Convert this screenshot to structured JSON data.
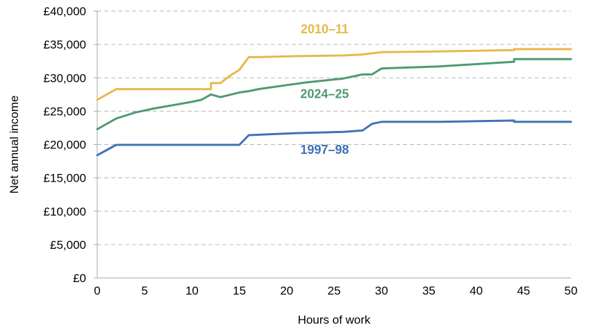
{
  "chart_data": {
    "type": "line",
    "title": "",
    "xlabel": "Hours of work",
    "ylabel": "Net annual income",
    "xlim": [
      0,
      50
    ],
    "ylim": [
      0,
      40000
    ],
    "x_ticks": [
      0,
      5,
      10,
      15,
      20,
      25,
      30,
      35,
      40,
      45,
      50
    ],
    "x_tick_labels": [
      "0",
      "5",
      "10",
      "15",
      "20",
      "25",
      "30",
      "35",
      "40",
      "45",
      "50"
    ],
    "y_ticks": [
      0,
      5000,
      10000,
      15000,
      20000,
      25000,
      30000,
      35000,
      40000
    ],
    "y_tick_labels": [
      "£0",
      "£5,000",
      "£10,000",
      "£15,000",
      "£20,000",
      "£25,000",
      "£30,000",
      "£35,000",
      "£40,000"
    ],
    "grid": "horizontal dashed",
    "legend": "direct labels on chart",
    "series": [
      {
        "name": "2010–11",
        "color": "#E8B84A",
        "label_at": [
          24,
          37300
        ],
        "points": [
          [
            0,
            26700
          ],
          [
            2,
            28300
          ],
          [
            12,
            28300
          ],
          [
            12,
            29200
          ],
          [
            13,
            29200
          ],
          [
            14,
            30300
          ],
          [
            15,
            31200
          ],
          [
            16,
            33100
          ],
          [
            17,
            33100
          ],
          [
            21,
            33250
          ],
          [
            26,
            33350
          ],
          [
            28,
            33500
          ],
          [
            30,
            33850
          ],
          [
            36,
            33950
          ],
          [
            44,
            34150
          ],
          [
            44,
            34300
          ],
          [
            50,
            34300
          ]
        ]
      },
      {
        "name": "2024–25",
        "color": "#4E9A71",
        "label_at": [
          24,
          27600
        ],
        "points": [
          [
            0,
            22300
          ],
          [
            2,
            23900
          ],
          [
            4,
            24800
          ],
          [
            6,
            25400
          ],
          [
            8,
            25900
          ],
          [
            10,
            26400
          ],
          [
            11,
            26700
          ],
          [
            12,
            27500
          ],
          [
            13,
            27100
          ],
          [
            15,
            27800
          ],
          [
            16,
            28000
          ],
          [
            17,
            28300
          ],
          [
            20,
            28900
          ],
          [
            22,
            29300
          ],
          [
            26,
            29900
          ],
          [
            28,
            30500
          ],
          [
            29,
            30500
          ],
          [
            30,
            31400
          ],
          [
            36,
            31700
          ],
          [
            44,
            32400
          ],
          [
            44,
            32800
          ],
          [
            50,
            32800
          ]
        ]
      },
      {
        "name": "1997–98",
        "color": "#3F72B5",
        "label_at": [
          24,
          19200
        ],
        "points": [
          [
            0,
            18400
          ],
          [
            2,
            19950
          ],
          [
            15,
            19950
          ],
          [
            16,
            21400
          ],
          [
            21,
            21700
          ],
          [
            26,
            21900
          ],
          [
            28,
            22100
          ],
          [
            29,
            23100
          ],
          [
            30,
            23400
          ],
          [
            36,
            23400
          ],
          [
            44,
            23600
          ],
          [
            44,
            23400
          ],
          [
            50,
            23400
          ]
        ]
      }
    ]
  },
  "colors": {
    "grid": "#b7b7b7",
    "axis": "#a6a6a6",
    "text": "#000000"
  }
}
